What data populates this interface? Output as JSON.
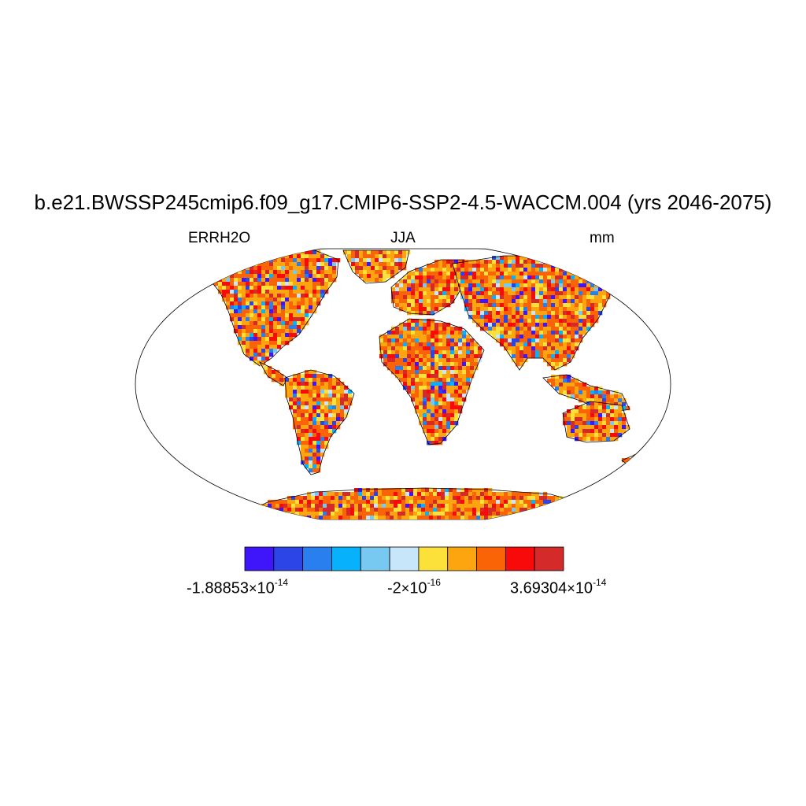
{
  "title": "b.e21.BWSSP245cmip6.f09_g17.CMIP6-SSP2-4.5-WACCM.004 (yrs 2046-2075)",
  "subtitle_left": "ERRH2O",
  "subtitle_center": "JJA",
  "subtitle_right": "mm",
  "colorbar": {
    "colors": [
      "#3f16f9",
      "#2b45e6",
      "#2a7fef",
      "#08b1fb",
      "#78c9f2",
      "#c8e6fa",
      "#fde13b",
      "#fca50f",
      "#fa6407",
      "#f90a0a",
      "#d42a2a"
    ],
    "labels": [
      {
        "mantissa": "-1.88853",
        "exponent": "-14"
      },
      {
        "mantissa": "-2",
        "exponent": "-16"
      },
      {
        "mantissa": "3.69304",
        "exponent": "-14"
      }
    ]
  },
  "map": {
    "projection": "robinson",
    "dominant_color": "#fca50f",
    "coastline_color": "#000000"
  }
}
